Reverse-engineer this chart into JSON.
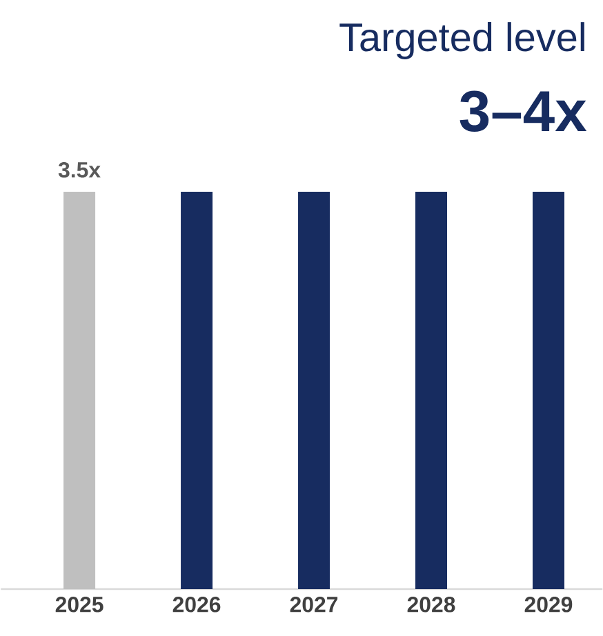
{
  "chart_data": {
    "type": "bar",
    "title": "Targeted level",
    "subtitle": "3–4x",
    "categories": [
      "2025",
      "2026",
      "2027",
      "2028",
      "2029"
    ],
    "values": [
      3.5,
      3.5,
      3.5,
      3.5,
      3.5
    ],
    "colors": [
      "#bfbfbf",
      "#172c60",
      "#172c60",
      "#172c60",
      "#172c60"
    ],
    "value_labels": [
      "3.5x",
      null,
      null,
      null,
      null
    ]
  }
}
